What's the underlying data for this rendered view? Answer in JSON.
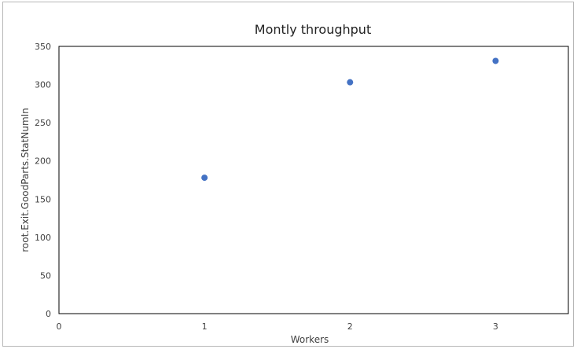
{
  "chart_data": {
    "type": "scatter",
    "title": "Montly throughput",
    "xlabel": "Workers",
    "ylabel": "root.Exit.GoodParts.StatNumIn",
    "xlim": [
      0,
      3.5
    ],
    "ylim": [
      0,
      350
    ],
    "x_ticks": [
      "0",
      "1",
      "2",
      "3"
    ],
    "y_ticks": [
      "0",
      "50",
      "100",
      "150",
      "200",
      "250",
      "300",
      "350"
    ],
    "grid": false,
    "legend": "none",
    "series": [
      {
        "x": [
          1,
          2,
          3
        ],
        "y": [
          178,
          303,
          331
        ],
        "color": "#4472c4"
      }
    ]
  }
}
